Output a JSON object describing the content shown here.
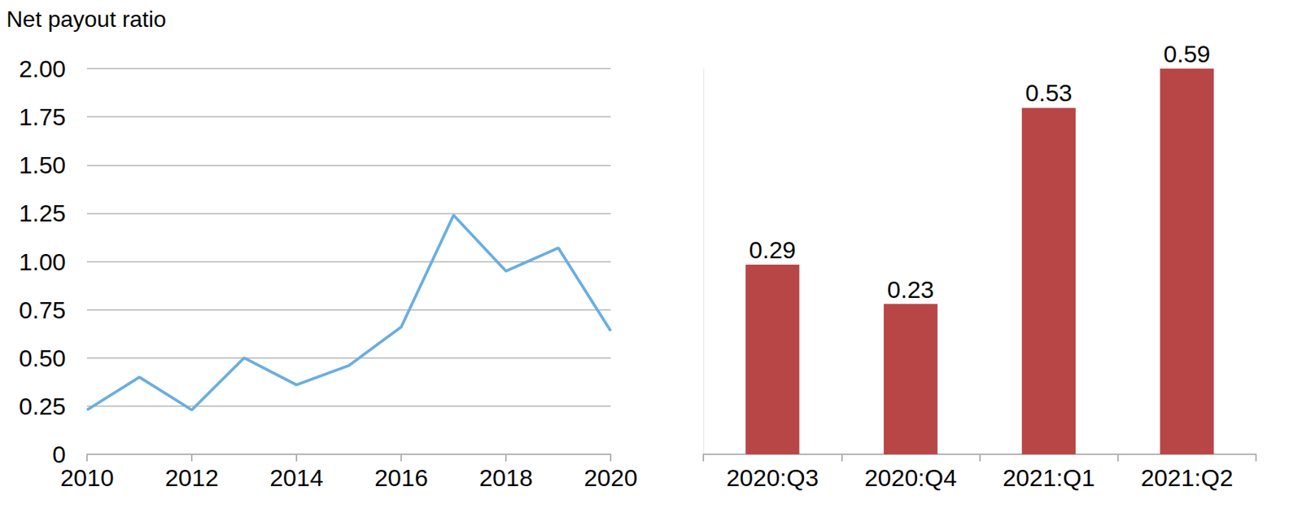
{
  "chart_data": [
    {
      "type": "line",
      "y_label": "Net payout ratio",
      "x": [
        2010,
        2011,
        2012,
        2013,
        2014,
        2015,
        2016,
        2017,
        2018,
        2019,
        2020
      ],
      "values": [
        0.23,
        0.4,
        0.23,
        0.5,
        0.36,
        0.46,
        0.66,
        1.24,
        0.95,
        1.07,
        0.64
      ],
      "color": "#6aaee0",
      "xlim": [
        2010,
        2020
      ],
      "xticks": [
        2010,
        2012,
        2014,
        2016,
        2018,
        2020
      ],
      "ylim": [
        0,
        2
      ],
      "yticks": [
        0,
        0.25,
        {
          "value": 0.5,
          "label": "0.50"
        },
        0.75,
        {
          "value": 1,
          "label": "1.00"
        },
        1.25,
        {
          "value": 1.5,
          "label": "1.50"
        },
        1.75,
        {
          "value": 2,
          "label": "2.00"
        }
      ],
      "grid": true
    },
    {
      "type": "bar",
      "categories": [
        "2020:Q3",
        "2020:Q4",
        "2021:Q1",
        "2021:Q2"
      ],
      "values": [
        0.29,
        0.23,
        0.53,
        0.59
      ],
      "color": "#b94646",
      "ylim": [
        0,
        0.59
      ],
      "data_labels": true,
      "tick_labels": "x",
      "grid": false
    }
  ]
}
